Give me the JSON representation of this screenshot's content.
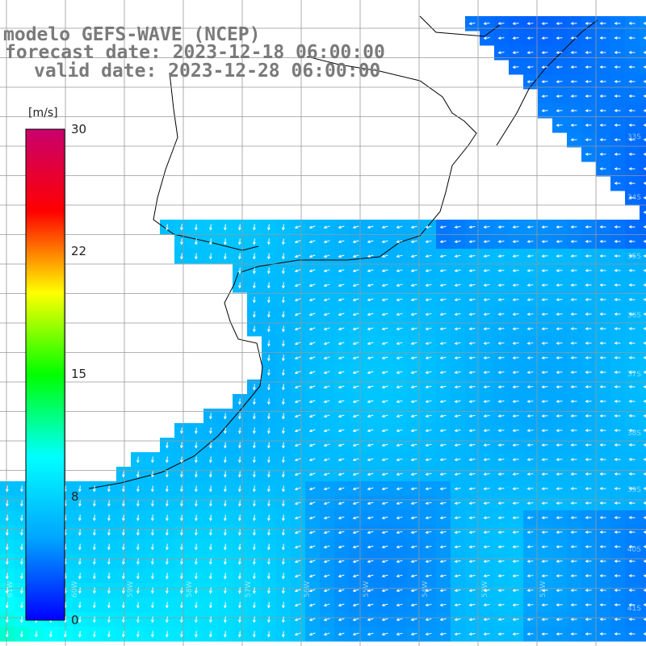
{
  "title": {
    "model": "modelo GEFS-WAVE (NCEP)",
    "forecast": "forecast date: 2023-12-18 06:00:00",
    "valid": "valid date: 2023-12-28 06:00:00"
  },
  "colorbar": {
    "units": "[m/s]",
    "min": 0,
    "max": 30,
    "ticks": [
      "30",
      "22",
      "15",
      "8",
      "0"
    ],
    "tick_values": [
      30,
      22,
      15,
      8,
      0
    ],
    "colors": [
      "#0000ff",
      "#00a5ff",
      "#00ffff",
      "#00ff00",
      "#ffff00",
      "#ff0000",
      "#c8006e"
    ]
  },
  "map": {
    "field": "wind speed with direction arrows",
    "land_color": "#ffffff",
    "coast_color": "#000000",
    "grid_color": "#999999",
    "arrow_color": "#ffffff",
    "lat_labels": [
      "33S",
      "34S",
      "35S",
      "36S",
      "37S",
      "38S",
      "39S",
      "40S",
      "41S"
    ],
    "lon_labels": [
      "61W",
      "60W",
      "59W",
      "58W",
      "57W",
      "56W",
      "55W",
      "54W",
      "53W",
      "52W"
    ]
  }
}
